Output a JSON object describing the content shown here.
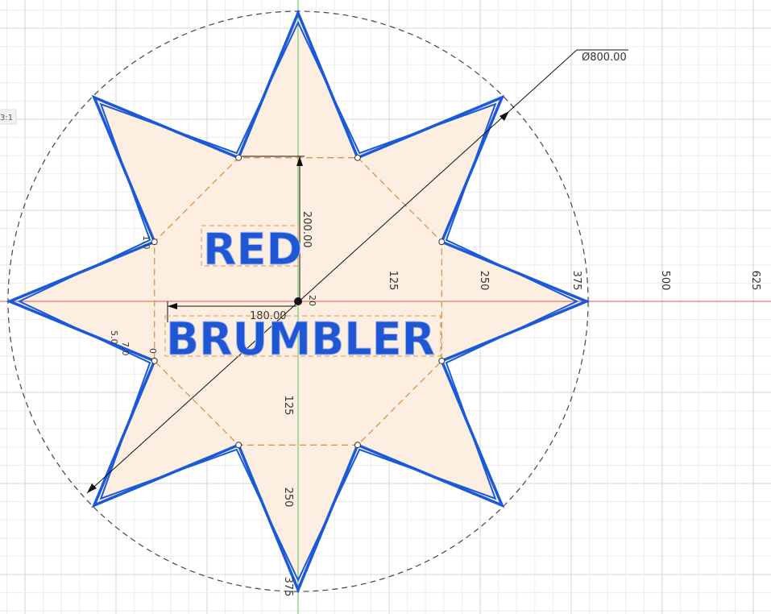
{
  "sketch": {
    "scale_label": "3:1",
    "diameter": "Ø800.00",
    "dimensions": {
      "vertical": "200.00",
      "horizontal": "180.00",
      "small": "20"
    },
    "x_axis_labels": [
      "125",
      "250",
      "375",
      "500",
      "625"
    ],
    "y_axis_labels": [
      "125",
      "250",
      "375"
    ],
    "minor_labels": [
      "5.0",
      "7.0",
      "0",
      "1.0"
    ],
    "texts": [
      "RED",
      "BRUMBLER"
    ]
  }
}
